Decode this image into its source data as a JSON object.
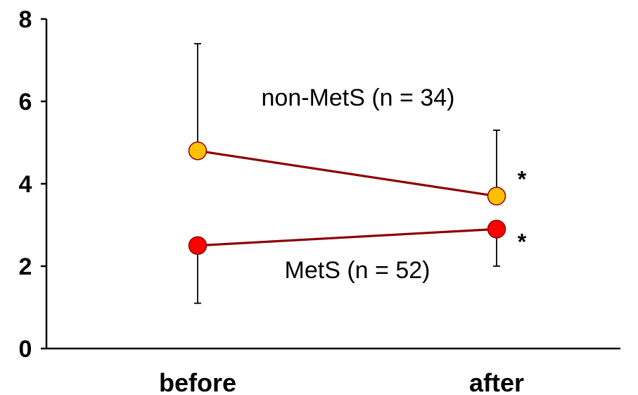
{
  "chart_data": {
    "type": "line",
    "categories": [
      "before",
      "after"
    ],
    "ylim": [
      0,
      8
    ],
    "yticks": [
      0,
      2,
      4,
      6,
      8
    ],
    "grid": false,
    "series": [
      {
        "name": "non-MetS (n = 34)",
        "values": [
          4.8,
          3.7
        ],
        "error_upper": [
          7.4,
          5.3
        ],
        "error_lower": [
          null,
          null
        ],
        "marker_color": "#FFC000",
        "significance": [
          "",
          "*"
        ]
      },
      {
        "name": "MetS (n = 52)",
        "values": [
          2.5,
          2.9
        ],
        "error_upper": [
          null,
          null
        ],
        "error_lower": [
          1.1,
          2.0
        ],
        "marker_color": "#FF0000",
        "significance": [
          "",
          "*"
        ]
      }
    ],
    "line_color": "#8B0000",
    "marker_edge_color": "#8B0000"
  }
}
